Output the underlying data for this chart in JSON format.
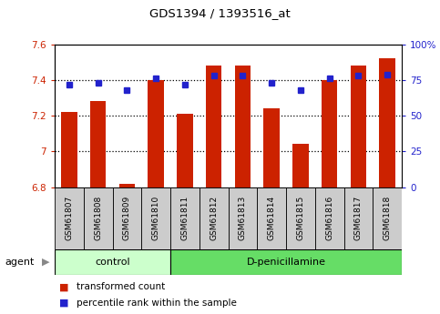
{
  "title": "GDS1394 / 1393516_at",
  "samples": [
    "GSM61807",
    "GSM61808",
    "GSM61809",
    "GSM61810",
    "GSM61811",
    "GSM61812",
    "GSM61813",
    "GSM61814",
    "GSM61815",
    "GSM61816",
    "GSM61817",
    "GSM61818"
  ],
  "bar_values": [
    7.22,
    7.28,
    6.82,
    7.4,
    7.21,
    7.48,
    7.48,
    7.24,
    7.04,
    7.4,
    7.48,
    7.52
  ],
  "percentile_values": [
    72,
    73,
    68,
    76,
    72,
    78,
    78,
    73,
    68,
    76,
    78,
    79
  ],
  "bar_bottom": 6.8,
  "ylim_left": [
    6.8,
    7.6
  ],
  "ylim_right": [
    0,
    100
  ],
  "yticks_left": [
    6.8,
    7.0,
    7.2,
    7.4,
    7.6
  ],
  "ytick_labels_left": [
    "6.8",
    "7",
    "7.2",
    "7.4",
    "7.6"
  ],
  "yticks_right": [
    0,
    25,
    50,
    75,
    100
  ],
  "ytick_labels_right": [
    "0",
    "25",
    "50",
    "75",
    "100%"
  ],
  "hgrid_values": [
    7.0,
    7.2,
    7.4
  ],
  "bar_color": "#cc2200",
  "dot_color": "#2222cc",
  "control_samples": 4,
  "control_label": "control",
  "treatment_label": "D-penicillamine",
  "agent_label": "agent",
  "control_bg": "#ccffcc",
  "treatment_bg": "#66dd66",
  "sample_box_bg": "#cccccc",
  "legend_bar_label": "transformed count",
  "legend_dot_label": "percentile rank within the sample",
  "bar_width": 0.55,
  "plot_bg": "#ffffff",
  "tick_color_left": "#cc2200",
  "tick_color_right": "#2222cc",
  "spine_color": "#000000",
  "figsize": [
    4.83,
    3.45
  ],
  "dpi": 100
}
